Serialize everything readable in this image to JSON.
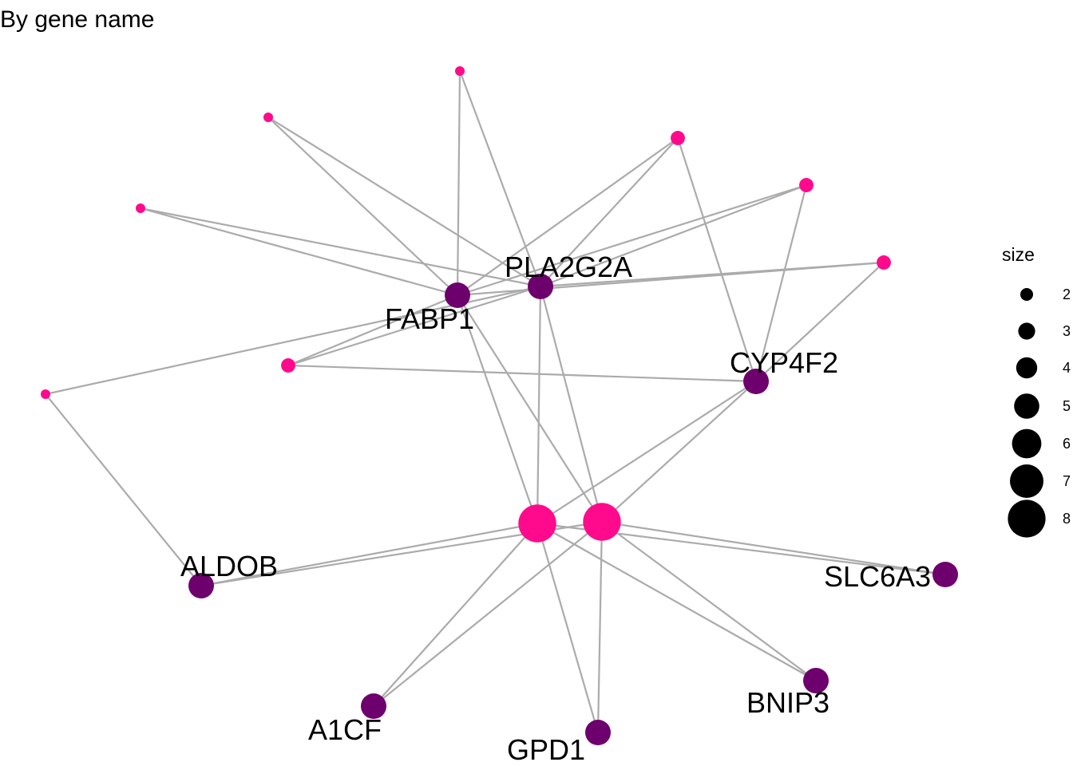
{
  "title": "By gene name",
  "colors": {
    "category_node": "#FF0A8C",
    "gene_node": "#6E006E",
    "edge": "#ABABAB",
    "legend_marker": "#000000"
  },
  "legend": {
    "title": "size",
    "entries": [
      "2",
      "3",
      "4",
      "5",
      "6",
      "7",
      "8"
    ]
  },
  "nodes": [
    {
      "id": "c1",
      "type": "category",
      "label": "",
      "size": 2
    },
    {
      "id": "c2",
      "type": "category",
      "label": "",
      "size": 2
    },
    {
      "id": "c3",
      "type": "category",
      "label": "",
      "size": 3
    },
    {
      "id": "c4",
      "type": "category",
      "label": "",
      "size": 3
    },
    {
      "id": "c5",
      "type": "category",
      "label": "",
      "size": 2
    },
    {
      "id": "c6",
      "type": "category",
      "label": "",
      "size": 3
    },
    {
      "id": "c7",
      "type": "category",
      "label": "",
      "size": 3
    },
    {
      "id": "c8",
      "type": "category",
      "label": "",
      "size": 2
    },
    {
      "id": "c9",
      "type": "category",
      "label": "",
      "size": 8
    },
    {
      "id": "c10",
      "type": "category",
      "label": "",
      "size": 8
    },
    {
      "id": "FABP1",
      "type": "gene",
      "label": "FABP1",
      "size": 2
    },
    {
      "id": "PLA2G2A",
      "type": "gene",
      "label": "PLA2G2A",
      "size": 2
    },
    {
      "id": "CYP4F2",
      "type": "gene",
      "label": "CYP4F2",
      "size": 2
    },
    {
      "id": "ALDOB",
      "type": "gene",
      "label": "ALDOB",
      "size": 2
    },
    {
      "id": "SLC6A3",
      "type": "gene",
      "label": "SLC6A3",
      "size": 2
    },
    {
      "id": "BNIP3",
      "type": "gene",
      "label": "BNIP3",
      "size": 2
    },
    {
      "id": "A1CF",
      "type": "gene",
      "label": "A1CF",
      "size": 2
    },
    {
      "id": "GPD1",
      "type": "gene",
      "label": "GPD1",
      "size": 2
    }
  ],
  "edges": [
    [
      "c1",
      "FABP1"
    ],
    [
      "c1",
      "PLA2G2A"
    ],
    [
      "c2",
      "FABP1"
    ],
    [
      "c2",
      "PLA2G2A"
    ],
    [
      "c5",
      "FABP1"
    ],
    [
      "c5",
      "PLA2G2A"
    ],
    [
      "c3",
      "FABP1"
    ],
    [
      "c3",
      "PLA2G2A"
    ],
    [
      "c3",
      "CYP4F2"
    ],
    [
      "c4",
      "FABP1"
    ],
    [
      "c4",
      "PLA2G2A"
    ],
    [
      "c4",
      "CYP4F2"
    ],
    [
      "c6",
      "FABP1"
    ],
    [
      "c6",
      "PLA2G2A"
    ],
    [
      "c6",
      "CYP4F2"
    ],
    [
      "c7",
      "FABP1"
    ],
    [
      "c7",
      "PLA2G2A"
    ],
    [
      "c7",
      "CYP4F2"
    ],
    [
      "c8",
      "PLA2G2A"
    ],
    [
      "c8",
      "ALDOB"
    ],
    [
      "c9",
      "FABP1"
    ],
    [
      "c9",
      "PLA2G2A"
    ],
    [
      "c9",
      "CYP4F2"
    ],
    [
      "c9",
      "ALDOB"
    ],
    [
      "c9",
      "SLC6A3"
    ],
    [
      "c9",
      "BNIP3"
    ],
    [
      "c9",
      "A1CF"
    ],
    [
      "c9",
      "GPD1"
    ],
    [
      "c10",
      "FABP1"
    ],
    [
      "c10",
      "PLA2G2A"
    ],
    [
      "c10",
      "CYP4F2"
    ],
    [
      "c10",
      "ALDOB"
    ],
    [
      "c10",
      "SLC6A3"
    ],
    [
      "c10",
      "BNIP3"
    ],
    [
      "c10",
      "A1CF"
    ],
    [
      "c10",
      "GPD1"
    ]
  ]
}
